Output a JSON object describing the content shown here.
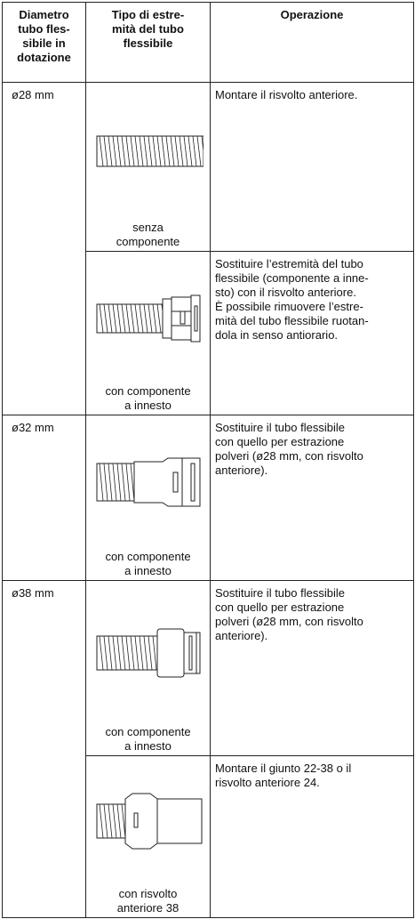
{
  "table": {
    "header": [
      [
        "Diametro",
        "tubo fles-",
        "sibile in",
        "dotazione"
      ],
      [
        "Tipo di estre-",
        "mità del tubo",
        "flessibile"
      ],
      [
        "Operazione"
      ]
    ],
    "rows": [
      {
        "diameter": "ø28 mm",
        "entries": [
          {
            "end_type": [
              "senza",
              "componente"
            ],
            "operation": [
              "Montare il risvolto anteriore."
            ]
          },
          {
            "end_type": [
              "con componente",
              "a innesto"
            ],
            "operation": [
              "Sostituire l’estremità del tubo",
              "flessibile (componente a inne-",
              "sto) con il risvolto anteriore.",
              "È possibile rimuovere l’estre-",
              "mità del tubo flessibile ruotan-",
              "dola in senso antiorario."
            ]
          }
        ]
      },
      {
        "diameter": "ø32 mm",
        "entries": [
          {
            "end_type": [
              "con componente",
              "a innesto"
            ],
            "operation": [
              "Sostituire il tubo flessibile",
              "con quello per estrazione",
              "polveri (ø28 mm, con risvolto",
              "anteriore)."
            ]
          }
        ]
      },
      {
        "diameter": "ø38 mm",
        "entries": [
          {
            "end_type": [
              "con componente",
              "a innesto"
            ],
            "operation": [
              "Sostituire il tubo flessibile",
              "con quello per estrazione",
              "polveri (ø28 mm, con risvolto",
              "anteriore)."
            ]
          },
          {
            "end_type": [
              "con risvolto",
              "anteriore 38"
            ],
            "operation": [
              "Montare il giunto 22-38 o il",
              "risvolto anteriore 24."
            ]
          }
        ]
      }
    ]
  }
}
